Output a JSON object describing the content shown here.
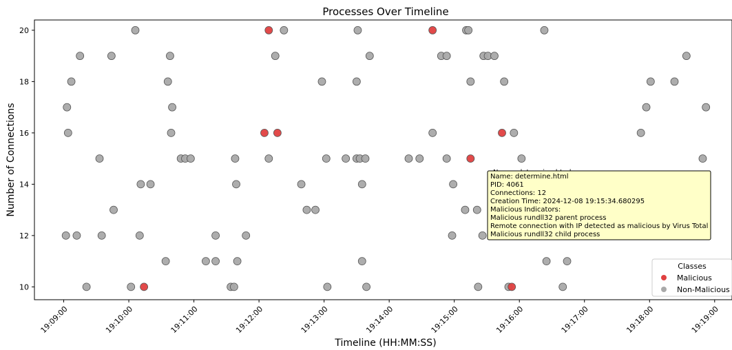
{
  "chart_data": {
    "type": "scatter",
    "title": "Processes Over Timeline",
    "xlabel": "Timeline (HH:MM:SS)",
    "ylabel": "Number of Connections",
    "x_ticks": [
      "19:09:00",
      "19:10:00",
      "19:11:00",
      "19:12:00",
      "19:13:00",
      "19:14:00",
      "19:15:00",
      "19:16:00",
      "19:17:00",
      "19:18:00",
      "19:19:00"
    ],
    "y_ticks": [
      10,
      12,
      14,
      16,
      18,
      20
    ],
    "xlim": [
      "19:08:33",
      "19:19:16"
    ],
    "ylim": [
      9.5,
      20.4
    ],
    "grid": false,
    "legend": {
      "title": "Classes",
      "position": "lower-right",
      "entries": [
        {
          "label": "Malicious",
          "color": "#e04040"
        },
        {
          "label": "Non-Malicious",
          "color": "#a9a9a9"
        }
      ]
    },
    "series": [
      {
        "name": "Malicious",
        "color": "#e04040",
        "points": [
          [
            "19:10:14",
            10
          ],
          [
            "19:12:05",
            16
          ],
          [
            "19:12:09",
            20
          ],
          [
            "19:12:17",
            16
          ],
          [
            "19:14:40",
            20
          ],
          [
            "19:15:15",
            15
          ],
          [
            "19:15:44",
            16
          ],
          [
            "19:15:53",
            10
          ]
        ]
      },
      {
        "name": "Non-Malicious",
        "color": "#a9a9a9",
        "points": [
          [
            "19:09:02",
            12
          ],
          [
            "19:09:03",
            17
          ],
          [
            "19:09:04",
            16
          ],
          [
            "19:09:07",
            18
          ],
          [
            "19:09:12",
            12
          ],
          [
            "19:09:15",
            19
          ],
          [
            "19:09:21",
            10
          ],
          [
            "19:09:33",
            15
          ],
          [
            "19:09:35",
            12
          ],
          [
            "19:09:44",
            19
          ],
          [
            "19:09:46",
            13
          ],
          [
            "19:10:02",
            10
          ],
          [
            "19:10:06",
            20
          ],
          [
            "19:10:10",
            12
          ],
          [
            "19:10:11",
            14
          ],
          [
            "19:10:20",
            14
          ],
          [
            "19:10:34",
            11
          ],
          [
            "19:10:36",
            18
          ],
          [
            "19:10:38",
            19
          ],
          [
            "19:10:39",
            16
          ],
          [
            "19:10:40",
            17
          ],
          [
            "19:10:48",
            15
          ],
          [
            "19:10:52",
            15
          ],
          [
            "19:10:57",
            15
          ],
          [
            "19:11:11",
            11
          ],
          [
            "19:11:20",
            12
          ],
          [
            "19:11:20",
            11
          ],
          [
            "19:11:34",
            10
          ],
          [
            "19:11:37",
            10
          ],
          [
            "19:11:38",
            15
          ],
          [
            "19:11:39",
            14
          ],
          [
            "19:11:40",
            11
          ],
          [
            "19:11:48",
            12
          ],
          [
            "19:12:09",
            15
          ],
          [
            "19:12:15",
            19
          ],
          [
            "19:12:23",
            20
          ],
          [
            "19:12:39",
            14
          ],
          [
            "19:12:44",
            13
          ],
          [
            "19:12:52",
            13
          ],
          [
            "19:12:58",
            18
          ],
          [
            "19:13:02",
            15
          ],
          [
            "19:13:03",
            10
          ],
          [
            "19:13:20",
            15
          ],
          [
            "19:13:30",
            18
          ],
          [
            "19:13:30",
            15
          ],
          [
            "19:13:31",
            20
          ],
          [
            "19:13:33",
            15
          ],
          [
            "19:13:35",
            14
          ],
          [
            "19:13:35",
            11
          ],
          [
            "19:13:38",
            15
          ],
          [
            "19:13:39",
            10
          ],
          [
            "19:13:42",
            19
          ],
          [
            "19:14:18",
            15
          ],
          [
            "19:14:28",
            15
          ],
          [
            "19:14:40",
            16
          ],
          [
            "19:14:48",
            19
          ],
          [
            "19:14:53",
            19
          ],
          [
            "19:14:53",
            15
          ],
          [
            "19:14:58",
            12
          ],
          [
            "19:14:59",
            14
          ],
          [
            "19:15:10",
            13
          ],
          [
            "19:15:11",
            20
          ],
          [
            "19:15:13",
            20
          ],
          [
            "19:15:15",
            18
          ],
          [
            "19:15:21",
            13
          ],
          [
            "19:15:22",
            10
          ],
          [
            "19:15:26",
            12
          ],
          [
            "19:15:27",
            19
          ],
          [
            "19:15:31",
            19
          ],
          [
            "19:15:37",
            19
          ],
          [
            "19:15:46",
            18
          ],
          [
            "19:15:50",
            10
          ],
          [
            "19:15:55",
            16
          ],
          [
            "19:16:02",
            15
          ],
          [
            "19:16:23",
            20
          ],
          [
            "19:16:25",
            11
          ],
          [
            "19:16:40",
            10
          ],
          [
            "19:16:44",
            11
          ],
          [
            "19:17:52",
            16
          ],
          [
            "19:17:57",
            17
          ],
          [
            "19:18:01",
            18
          ],
          [
            "19:18:23",
            18
          ],
          [
            "19:18:34",
            19
          ],
          [
            "19:18:49",
            15
          ],
          [
            "19:18:52",
            17
          ]
        ]
      }
    ],
    "tooltip": {
      "hidden_header": "Name: determine.html",
      "lines": [
        "Name: determine.html",
        "PID: 4061",
        "Connections: 12",
        "Creation Time: 2024-12-08 19:15:34.680295",
        "Malicious Indicators:",
        "Malicious rundll32 parent process",
        "Remote connection with IP detected as malicious by Virus Total",
        "Malicious rundll32 child process"
      ]
    }
  }
}
